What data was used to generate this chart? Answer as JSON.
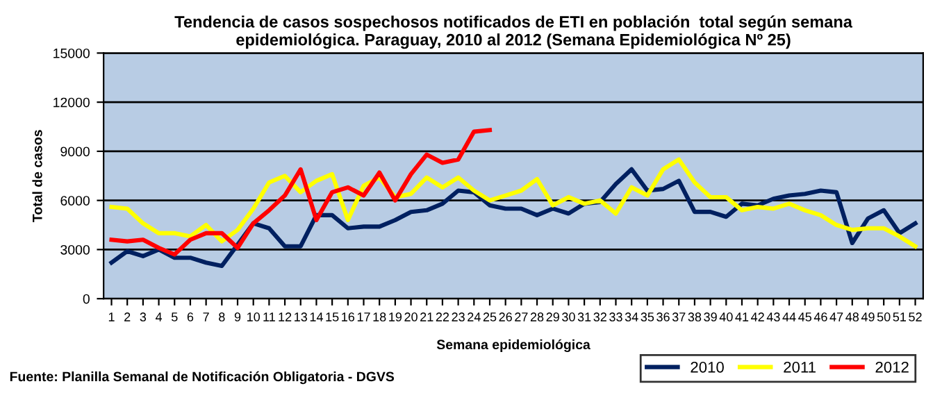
{
  "chart_data": {
    "type": "line",
    "title": "Tendencia de casos sospechosos notificados de ETI en población  total según semana\nepidemiológica. Paraguay, 2010 al 2012 (Semana Epidemiológica Nº 25)",
    "xlabel": "Semana epidemiológica",
    "ylabel": "Total de casos",
    "categories": [
      "1",
      "2",
      "3",
      "4",
      "5",
      "6",
      "7",
      "8",
      "9",
      "10",
      "11",
      "12",
      "13",
      "14",
      "15",
      "16",
      "17",
      "18",
      "19",
      "20",
      "21",
      "22",
      "23",
      "24",
      "25",
      "26",
      "27",
      "28",
      "29",
      "30",
      "31",
      "32",
      "33",
      "34",
      "35",
      "36",
      "37",
      "38",
      "39",
      "40",
      "41",
      "42",
      "43",
      "44",
      "45",
      "46",
      "47",
      "48",
      "49",
      "50",
      "51",
      "52"
    ],
    "series": [
      {
        "name": "2010",
        "color": "#002060",
        "values": [
          2200,
          2900,
          2600,
          3000,
          2500,
          2500,
          2200,
          2000,
          3300,
          4600,
          4300,
          3200,
          3200,
          5100,
          5100,
          4300,
          4400,
          4400,
          4800,
          5300,
          5400,
          5800,
          6600,
          6500,
          5700,
          5500,
          5500,
          5100,
          5500,
          5200,
          5800,
          5900,
          7000,
          7900,
          6600,
          6700,
          7200,
          5300,
          5300,
          5000,
          5800,
          5700,
          6100,
          6300,
          6400,
          6600,
          6500,
          3400,
          4900,
          5400,
          4000,
          4600
        ]
      },
      {
        "name": "2011",
        "color": "#ffff00",
        "values": [
          5600,
          5500,
          4600,
          4000,
          4000,
          3800,
          4500,
          3500,
          4200,
          5500,
          7100,
          7500,
          6500,
          7200,
          7600,
          4800,
          6900,
          7400,
          6200,
          6400,
          7400,
          6800,
          7400,
          6600,
          6000,
          6300,
          6600,
          7300,
          5700,
          6200,
          5800,
          6000,
          5200,
          6800,
          6300,
          7900,
          8500,
          7100,
          6200,
          6200,
          5400,
          5600,
          5500,
          5800,
          5400,
          5100,
          4500,
          4200,
          4300,
          4300,
          3800,
          3200
        ]
      },
      {
        "name": "2012",
        "color": "#ff0000",
        "values": [
          3600,
          3500,
          3600,
          3100,
          2700,
          3600,
          4000,
          4000,
          3100,
          4600,
          5400,
          6300,
          7900,
          4800,
          6500,
          6800,
          6300,
          7700,
          6000,
          7600,
          8800,
          8300,
          8500,
          10200,
          10300,
          null,
          null,
          null,
          null,
          null,
          null,
          null,
          null,
          null,
          null,
          null,
          null,
          null,
          null,
          null,
          null,
          null,
          null,
          null,
          null,
          null,
          null,
          null,
          null,
          null,
          null,
          null
        ]
      }
    ],
    "ylim": [
      0,
      15000
    ],
    "yticks": [
      0,
      3000,
      6000,
      9000,
      12000,
      15000
    ],
    "grid": "y",
    "legend": "bottom right",
    "marker": "none",
    "line_style": "solid",
    "annotations": [
      "Fuente: Planilla Semanal de Notificación Obligatoria - DGVS"
    ]
  }
}
